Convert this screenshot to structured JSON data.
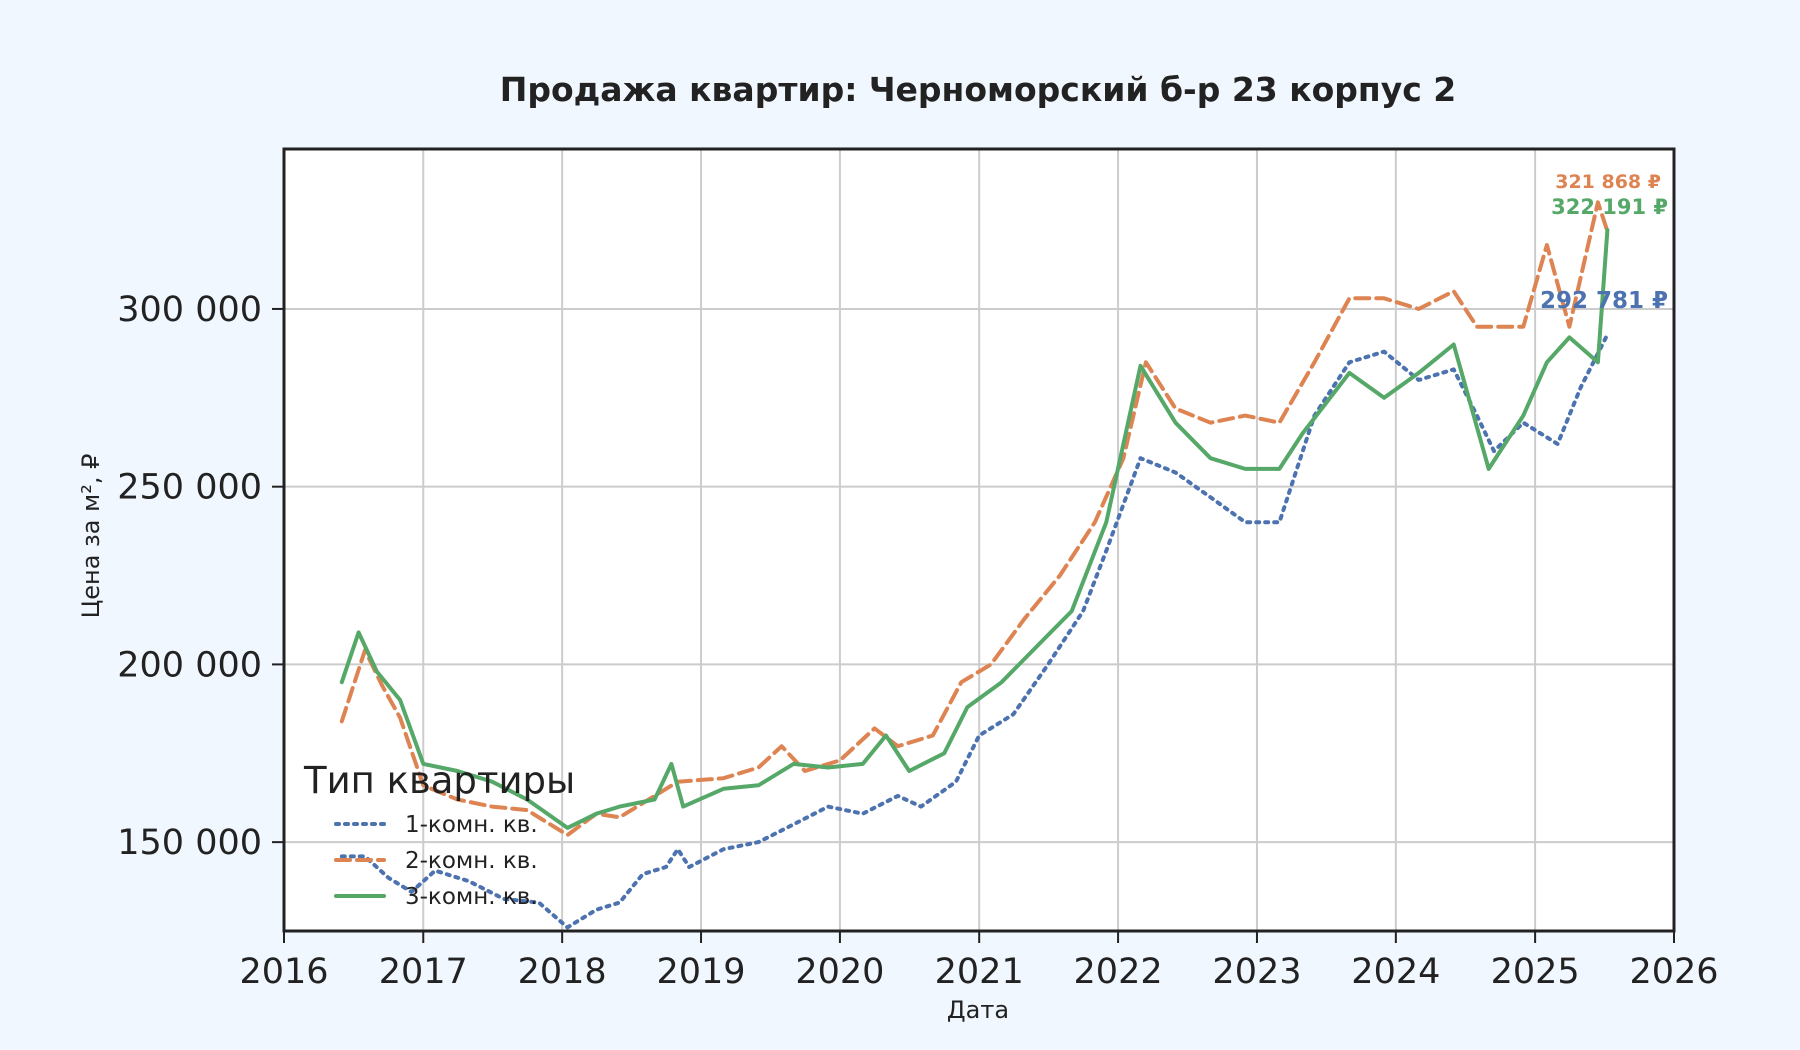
{
  "chart_data": {
    "type": "line",
    "title": "Продажа квартир: Черноморский б-р 23 корпус 2",
    "xlabel": "Дата",
    "ylabel": "Цена за м², ₽",
    "xlim": [
      "2016-01-01",
      "2026-01-01"
    ],
    "ylim": [
      125000,
      345000
    ],
    "x_ticks": [
      "2016",
      "2017",
      "2018",
      "2019",
      "2020",
      "2021",
      "2022",
      "2023",
      "2024",
      "2025",
      "2026"
    ],
    "y_ticks": [
      150000,
      200000,
      250000,
      300000
    ],
    "y_tick_labels": [
      "150 000",
      "200 000",
      "250 000",
      "300 000"
    ],
    "grid": true,
    "legend": {
      "title": "Тип квартиры",
      "placement": "lower-left"
    },
    "series": [
      {
        "name": "1-комн. кв.",
        "color": "#4c72b0",
        "style": "dotted",
        "end_label": "292 781 ₽",
        "points": [
          [
            "2016-06-01",
            146000
          ],
          [
            "2016-08-01",
            146000
          ],
          [
            "2016-10-01",
            140000
          ],
          [
            "2016-12-01",
            136000
          ],
          [
            "2017-02-01",
            142000
          ],
          [
            "2017-05-01",
            139000
          ],
          [
            "2017-08-01",
            134000
          ],
          [
            "2017-11-01",
            133000
          ],
          [
            "2018-01-15",
            126000
          ],
          [
            "2018-04-01",
            131000
          ],
          [
            "2018-06-01",
            133000
          ],
          [
            "2018-08-01",
            141000
          ],
          [
            "2018-10-01",
            143000
          ],
          [
            "2018-11-01",
            148000
          ],
          [
            "2018-12-01",
            143000
          ],
          [
            "2019-03-01",
            148000
          ],
          [
            "2019-06-01",
            150000
          ],
          [
            "2019-09-01",
            155000
          ],
          [
            "2019-12-01",
            160000
          ],
          [
            "2020-03-01",
            158000
          ],
          [
            "2020-06-01",
            163000
          ],
          [
            "2020-08-01",
            160000
          ],
          [
            "2020-11-01",
            167000
          ],
          [
            "2021-01-01",
            180000
          ],
          [
            "2021-04-01",
            186000
          ],
          [
            "2021-07-01",
            200000
          ],
          [
            "2021-10-01",
            215000
          ],
          [
            "2021-12-01",
            232000
          ],
          [
            "2022-03-01",
            258000
          ],
          [
            "2022-06-01",
            254000
          ],
          [
            "2022-09-01",
            247000
          ],
          [
            "2022-12-01",
            240000
          ],
          [
            "2023-03-01",
            240000
          ],
          [
            "2023-06-01",
            270000
          ],
          [
            "2023-09-01",
            285000
          ],
          [
            "2023-12-01",
            288000
          ],
          [
            "2024-03-01",
            280000
          ],
          [
            "2024-06-01",
            283000
          ],
          [
            "2024-08-01",
            270000
          ],
          [
            "2024-09-15",
            260000
          ],
          [
            "2024-12-01",
            268000
          ],
          [
            "2025-03-01",
            262000
          ],
          [
            "2025-05-01",
            278000
          ],
          [
            "2025-07-10",
            292781
          ]
        ]
      },
      {
        "name": "2-комн. кв.",
        "color": "#dd8452",
        "style": "dashed",
        "end_label": "321 868 ₽",
        "points": [
          [
            "2016-06-01",
            184000
          ],
          [
            "2016-08-01",
            204000
          ],
          [
            "2016-09-15",
            194000
          ],
          [
            "2016-11-01",
            185000
          ],
          [
            "2017-01-01",
            166000
          ],
          [
            "2017-04-01",
            162000
          ],
          [
            "2017-07-01",
            160000
          ],
          [
            "2017-10-01",
            159000
          ],
          [
            "2018-01-15",
            152000
          ],
          [
            "2018-04-01",
            158000
          ],
          [
            "2018-06-01",
            157000
          ],
          [
            "2018-09-01",
            163000
          ],
          [
            "2018-11-01",
            167000
          ],
          [
            "2019-03-01",
            168000
          ],
          [
            "2019-06-01",
            171000
          ],
          [
            "2019-08-01",
            177000
          ],
          [
            "2019-10-01",
            170000
          ],
          [
            "2020-01-01",
            173000
          ],
          [
            "2020-04-01",
            182000
          ],
          [
            "2020-06-01",
            177000
          ],
          [
            "2020-09-01",
            180000
          ],
          [
            "2020-11-15",
            195000
          ],
          [
            "2021-02-01",
            200000
          ],
          [
            "2021-05-01",
            213000
          ],
          [
            "2021-08-01",
            225000
          ],
          [
            "2021-11-01",
            240000
          ],
          [
            "2022-01-15",
            258000
          ],
          [
            "2022-03-15",
            285000
          ],
          [
            "2022-06-01",
            272000
          ],
          [
            "2022-09-01",
            268000
          ],
          [
            "2022-12-01",
            270000
          ],
          [
            "2023-03-01",
            268000
          ],
          [
            "2023-06-01",
            285000
          ],
          [
            "2023-09-01",
            303000
          ],
          [
            "2023-12-01",
            303000
          ],
          [
            "2024-03-01",
            300000
          ],
          [
            "2024-06-01",
            305000
          ],
          [
            "2024-08-01",
            295000
          ],
          [
            "2024-12-01",
            295000
          ],
          [
            "2025-02-01",
            318000
          ],
          [
            "2025-04-01",
            295000
          ],
          [
            "2025-06-15",
            330000
          ],
          [
            "2025-07-10",
            321868
          ]
        ]
      },
      {
        "name": "3-комн. кв.",
        "color": "#55a868",
        "style": "solid",
        "end_label": "322 191 ₽",
        "points": [
          [
            "2016-06-01",
            195000
          ],
          [
            "2016-07-15",
            209000
          ],
          [
            "2016-09-01",
            198000
          ],
          [
            "2016-11-01",
            190000
          ],
          [
            "2017-01-01",
            172000
          ],
          [
            "2017-04-01",
            170000
          ],
          [
            "2017-07-01",
            167000
          ],
          [
            "2017-10-01",
            162000
          ],
          [
            "2018-01-15",
            154000
          ],
          [
            "2018-04-01",
            158000
          ],
          [
            "2018-06-01",
            160000
          ],
          [
            "2018-09-01",
            162000
          ],
          [
            "2018-10-15",
            172000
          ],
          [
            "2018-11-15",
            160000
          ],
          [
            "2019-03-01",
            165000
          ],
          [
            "2019-06-01",
            166000
          ],
          [
            "2019-09-01",
            172000
          ],
          [
            "2019-12-01",
            171000
          ],
          [
            "2020-03-01",
            172000
          ],
          [
            "2020-05-01",
            180000
          ],
          [
            "2020-07-01",
            170000
          ],
          [
            "2020-10-01",
            175000
          ],
          [
            "2020-12-01",
            188000
          ],
          [
            "2021-03-01",
            195000
          ],
          [
            "2021-06-01",
            205000
          ],
          [
            "2021-09-01",
            215000
          ],
          [
            "2021-12-01",
            240000
          ],
          [
            "2022-03-01",
            284000
          ],
          [
            "2022-06-01",
            268000
          ],
          [
            "2022-09-01",
            258000
          ],
          [
            "2022-12-01",
            255000
          ],
          [
            "2023-03-01",
            255000
          ],
          [
            "2023-05-01",
            265000
          ],
          [
            "2023-09-01",
            282000
          ],
          [
            "2023-12-01",
            275000
          ],
          [
            "2024-03-01",
            282000
          ],
          [
            "2024-06-01",
            290000
          ],
          [
            "2024-09-01",
            255000
          ],
          [
            "2024-12-01",
            270000
          ],
          [
            "2025-02-01",
            285000
          ],
          [
            "2025-04-01",
            292000
          ],
          [
            "2025-06-15",
            285000
          ],
          [
            "2025-07-10",
            322191
          ]
        ]
      }
    ]
  }
}
